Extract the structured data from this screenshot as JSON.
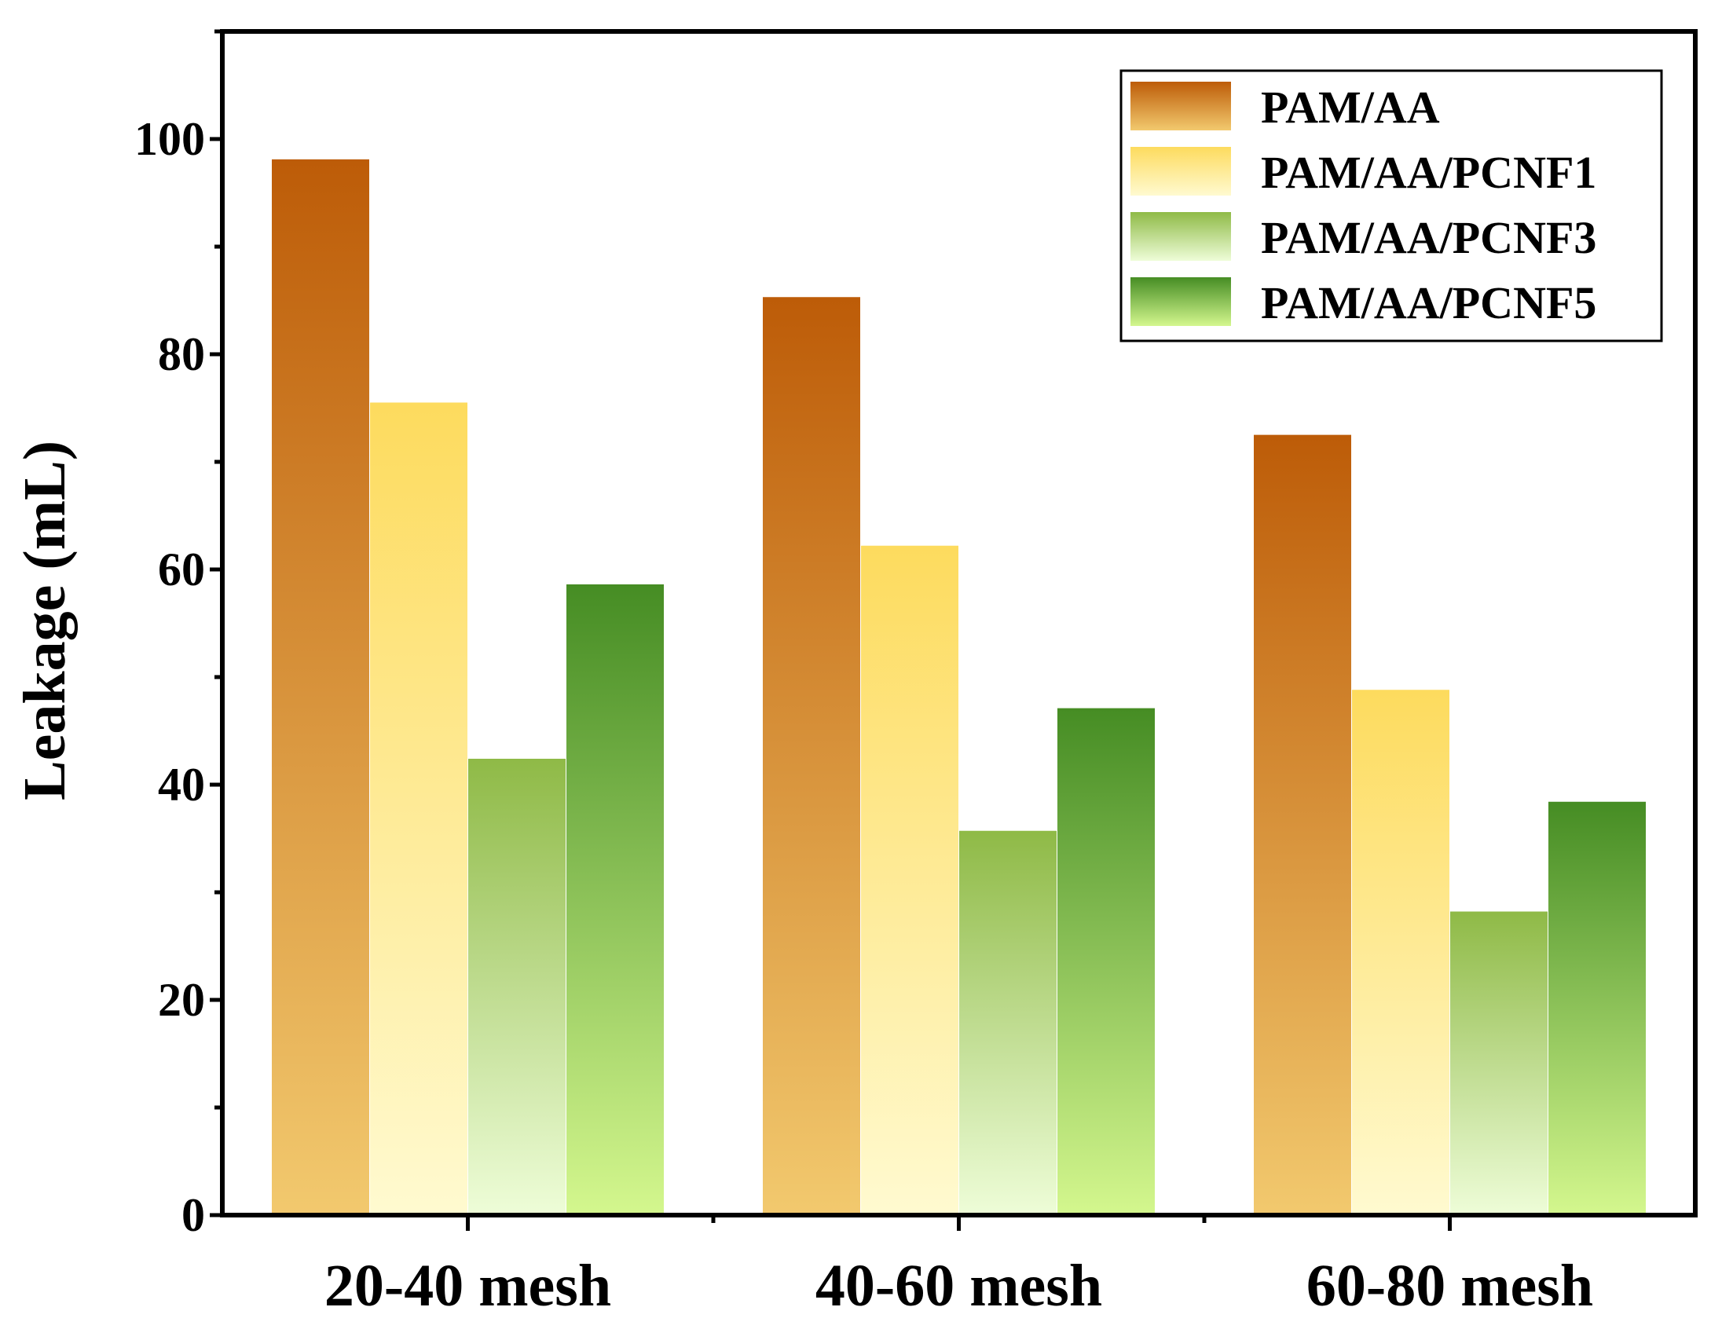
{
  "chart_data": {
    "type": "bar",
    "title": "",
    "xlabel": "",
    "ylabel": "Leakage (mL)",
    "ylim": [
      0,
      110
    ],
    "yticks": [
      0,
      20,
      40,
      60,
      80,
      100
    ],
    "grid": false,
    "legend_position": "top-right",
    "categories": [
      "20-40 mesh",
      "40-60 mesh",
      "60-80 mesh"
    ],
    "series": [
      {
        "name": "PAM/AA",
        "values": [
          98,
          85.2,
          72.4
        ],
        "color_top": "#bd5c08",
        "color_bottom": "#f2c96e"
      },
      {
        "name": "PAM/AA/PCNF1",
        "values": [
          75.4,
          62.1,
          48.7
        ],
        "color_top": "#fddb5e",
        "color_bottom": "#fffad0"
      },
      {
        "name": "PAM/AA/PCNF3",
        "values": [
          42.3,
          35.6,
          28.1
        ],
        "color_top": "#8fba47",
        "color_bottom": "#eefdd8"
      },
      {
        "name": "PAM/AA/PCNF5",
        "values": [
          58.5,
          47,
          38.3
        ],
        "color_top": "#468d24",
        "color_bottom": "#d4f78e"
      }
    ]
  }
}
